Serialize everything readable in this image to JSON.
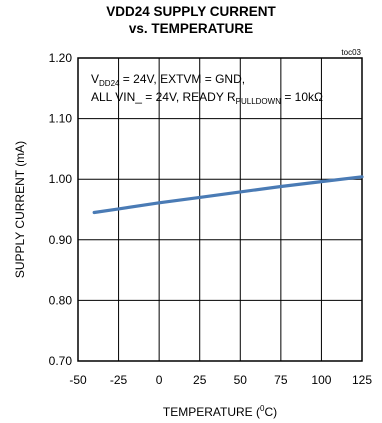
{
  "chart_data": {
    "type": "line",
    "title_line1": "VDD24 SUPPLY CURRENT",
    "title_line2": "vs. TEMPERATURE",
    "figure_id": "toc03",
    "xlabel": "TEMPERATURE (",
    "xlabel_sup": "0",
    "xlabel_unit": "C)",
    "ylabel": "SUPPLY CURRENT  (mA)",
    "xlim": [
      -50,
      125
    ],
    "ylim": [
      0.7,
      1.2
    ],
    "x_ticks": [
      -50,
      -25,
      0,
      25,
      50,
      75,
      100,
      125
    ],
    "x_tick_labels": [
      "-50",
      "-25",
      "0",
      "25",
      "50",
      "75",
      "100",
      "125"
    ],
    "y_ticks": [
      0.7,
      0.8,
      0.9,
      1.0,
      1.1,
      1.2
    ],
    "y_tick_labels": [
      "0.70",
      "0.80",
      "0.90",
      "1.00",
      "1.10",
      "1.20"
    ],
    "grid": true,
    "annotation": {
      "line1_a": "V",
      "line1_sub": "DD24",
      "line1_b": " = 24V, EXTVM = GND,",
      "line2_a": "ALL VIN_ = 24V, READY R",
      "line2_sub": "PULLDOWN",
      "line2_b": " = 10kΩ"
    },
    "series": [
      {
        "color": "#4a7bb5",
        "x": [
          -40,
          -25,
          0,
          25,
          50,
          75,
          100,
          125
        ],
        "y": [
          0.945,
          0.951,
          0.961,
          0.97,
          0.979,
          0.988,
          0.996,
          1.004
        ]
      }
    ]
  }
}
